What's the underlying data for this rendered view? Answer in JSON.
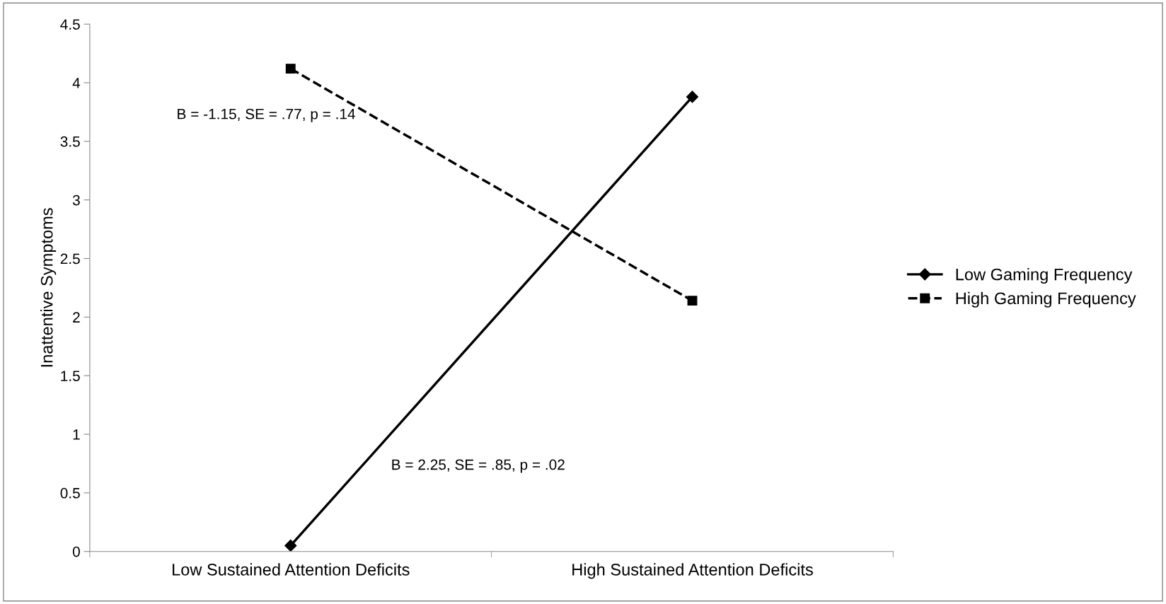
{
  "chart_data": {
    "type": "line",
    "ylabel": "Inattentive Symptoms",
    "categories": [
      "Low Sustained Attention Deficits",
      "High Sustained Attention Deficits"
    ],
    "series": [
      {
        "name": "Low Gaming Frequency",
        "color": "#000000",
        "values": [
          0.05,
          3.88
        ],
        "marker": "diamond",
        "line_style": "solid"
      },
      {
        "name": "High Gaming Frequency",
        "color": "#000000",
        "values": [
          4.12,
          2.14
        ],
        "marker": "square",
        "line_style": "dashed"
      }
    ],
    "ylim": [
      0,
      4.5
    ],
    "yticks": [
      0,
      0.5,
      1,
      1.5,
      2,
      2.5,
      3,
      3.5,
      4,
      4.5
    ],
    "annotations": [
      "B = -1.15, SE = .77, p = .14",
      "B = 2.25, SE = .85, p = .02"
    ],
    "grid": false,
    "legend": "right"
  }
}
